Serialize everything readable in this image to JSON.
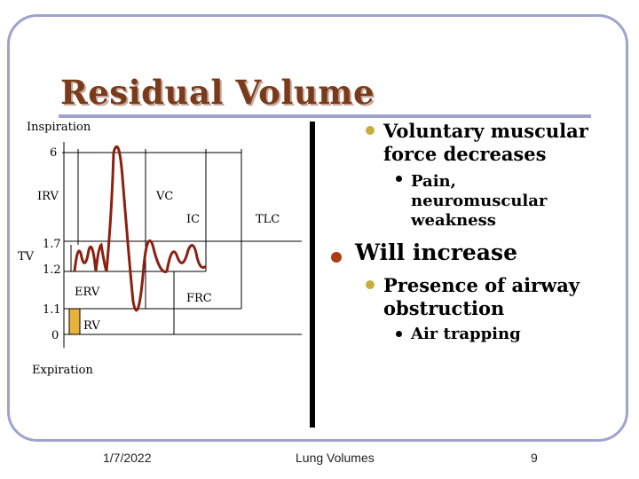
{
  "slide": {
    "title": "Residual Volume",
    "diagram": {
      "inspiration": "Inspiration",
      "expiration": "Expiration",
      "tick_6": "6",
      "tick_1_7": "1.7",
      "tick_1_2": "1.2",
      "tick_1_1": "1.1",
      "tick_0": "0",
      "irv": "IRV",
      "vc": "VC",
      "ic": "IC",
      "tlc": "TLC",
      "tv": "TV",
      "erv": "ERV",
      "frc": "FRC",
      "rv": "RV",
      "rv_box_color": "#e8b33a"
    },
    "bullets": {
      "b1": "Voluntary muscular force decreases",
      "b1_line1": "Voluntary muscular",
      "b1_line2": "force decreases",
      "b1_sub_line1": "Pain,",
      "b1_sub_line2": "neuromuscular",
      "b1_sub_line3": "weakness",
      "b2": "Will increase",
      "b3_line1": "Presence of airway",
      "b3_line2": "obstruction",
      "b3_sub": "Air trapping"
    },
    "footer": {
      "date": "1/7/2022",
      "center": "Lung Volumes",
      "page": "9"
    },
    "colors": {
      "frame": "#9fa3cc",
      "title": "#7a3b1c",
      "bullet_l1": "#c8ad3c",
      "bullet_big": "#b03a14"
    }
  }
}
